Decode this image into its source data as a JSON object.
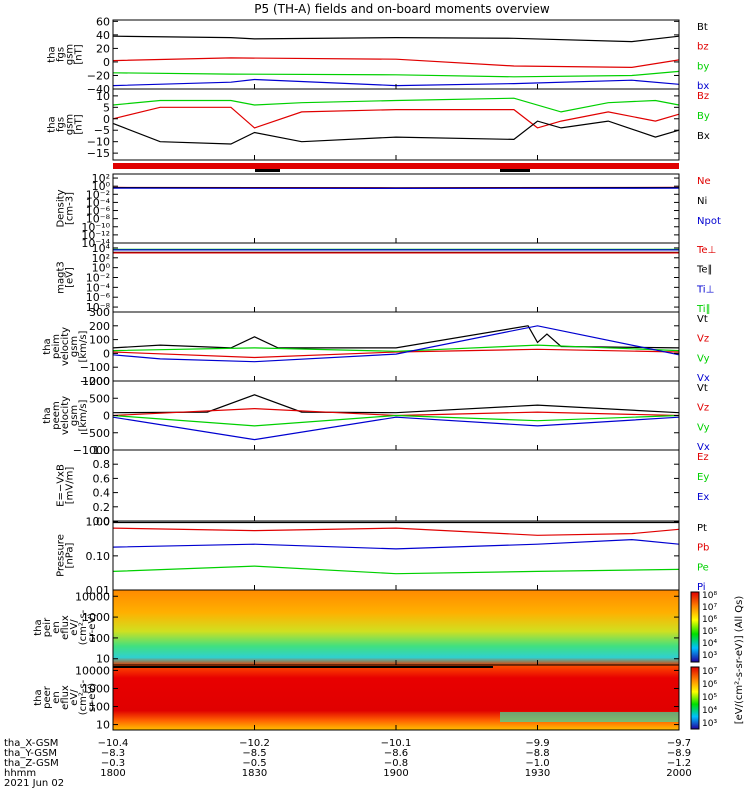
{
  "title": "P5 (TH-A) fields and on-board moments overview",
  "colors": {
    "black": "#000000",
    "red": "#e00000",
    "green": "#00d000",
    "blue": "#0000d0"
  },
  "chart_data": [
    {
      "id": "fgs_gsm",
      "type": "line",
      "ylabel": [
        "tha",
        "fgs",
        "gsm",
        "[nT]"
      ],
      "ylim": [
        -40,
        62
      ],
      "yticks": [
        "60",
        "40",
        "20",
        "0",
        "−20",
        "−40"
      ],
      "ytick_values": [
        60,
        40,
        20,
        0,
        -20,
        -40
      ],
      "legend": [
        {
          "name": "Bt",
          "color": "black"
        },
        {
          "name": "bz",
          "color": "red"
        },
        {
          "name": "by",
          "color": "green"
        },
        {
          "name": "bx",
          "color": "blue"
        }
      ],
      "series": [
        {
          "name": "Bt",
          "color": "black",
          "x": [
            0,
            25,
            30,
            60,
            85,
            110,
            120
          ],
          "y": [
            38,
            36,
            34,
            36,
            35,
            30,
            38
          ]
        },
        {
          "name": "bz",
          "color": "red",
          "x": [
            0,
            25,
            60,
            85,
            110,
            120
          ],
          "y": [
            2,
            6,
            4,
            -6,
            -8,
            3
          ]
        },
        {
          "name": "by",
          "color": "green",
          "x": [
            0,
            25,
            60,
            85,
            110,
            120
          ],
          "y": [
            -16,
            -18,
            -19,
            -22,
            -20,
            -14
          ]
        },
        {
          "name": "bx",
          "color": "blue",
          "x": [
            0,
            25,
            30,
            60,
            85,
            110,
            120
          ],
          "y": [
            -35,
            -30,
            -26,
            -35,
            -32,
            -27,
            -33
          ]
        }
      ]
    },
    {
      "id": "fgs_gsm_zoom",
      "type": "line",
      "ylabel": [
        "tha",
        "fgs",
        "gsm",
        "[nT]"
      ],
      "ylim": [
        -18,
        13
      ],
      "yticks": [
        "10",
        "5",
        "0",
        "−5",
        "−10",
        "−15"
      ],
      "ytick_values": [
        10,
        5,
        0,
        -5,
        -10,
        -15
      ],
      "legend": [
        {
          "name": "Bz",
          "color": "red"
        },
        {
          "name": "By",
          "color": "green"
        },
        {
          "name": "Bx",
          "color": "black"
        }
      ],
      "series": [
        {
          "name": "By",
          "color": "green",
          "x": [
            0,
            10,
            25,
            30,
            40,
            60,
            85,
            95,
            105,
            115,
            120
          ],
          "y": [
            6,
            8,
            8,
            6,
            7,
            8,
            9,
            3,
            7,
            8,
            6
          ]
        },
        {
          "name": "Bz",
          "color": "red",
          "x": [
            0,
            10,
            25,
            30,
            40,
            60,
            85,
            90,
            95,
            105,
            115,
            120
          ],
          "y": [
            0,
            5,
            5,
            -4,
            3,
            4,
            4,
            -4,
            -1,
            3,
            -1,
            2
          ]
        },
        {
          "name": "Bx",
          "color": "black",
          "x": [
            0,
            10,
            25,
            30,
            40,
            60,
            85,
            90,
            95,
            105,
            115,
            120
          ],
          "y": [
            -2,
            -10,
            -11,
            -6,
            -10,
            -8,
            -9,
            -1,
            -4,
            -1,
            -8,
            -5
          ]
        }
      ]
    },
    {
      "id": "density",
      "type": "line",
      "ylabel": [
        "Density",
        "[cm-3]"
      ],
      "ylim": [
        -14,
        3
      ],
      "log": true,
      "yticks": [
        "10²",
        "10⁰",
        "10⁻²",
        "10⁻⁴",
        "10⁻⁶",
        "10⁻⁸",
        "10⁻¹⁰",
        "10⁻¹²",
        "10⁻¹⁴"
      ],
      "ytick_values": [
        2,
        0,
        -2,
        -4,
        -6,
        -8,
        -10,
        -12,
        -14
      ],
      "legend": [
        {
          "name": "Ne",
          "color": "red"
        },
        {
          "name": "Ni",
          "color": "black"
        },
        {
          "name": "Npot",
          "color": "blue"
        }
      ],
      "series": [
        {
          "name": "Ne",
          "color": "red",
          "x": [
            0,
            60,
            120
          ],
          "y": [
            -0.3,
            -0.4,
            -0.3
          ]
        },
        {
          "name": "Ni",
          "color": "black",
          "x": [
            0,
            60,
            120
          ],
          "y": [
            -0.35,
            -0.45,
            -0.35
          ]
        },
        {
          "name": "Npot",
          "color": "blue",
          "x": [
            0,
            60,
            120
          ],
          "y": [
            -0.5,
            -0.55,
            -0.5
          ]
        }
      ]
    },
    {
      "id": "temperature",
      "type": "line",
      "ylabel": [
        "magt3",
        "[eV]"
      ],
      "ylim": [
        -9,
        5
      ],
      "log": true,
      "yticks": [
        "10⁴",
        "10²",
        "10⁰",
        "10⁻²",
        "10⁻⁴",
        "10⁻⁶",
        "10⁻⁸"
      ],
      "ytick_values": [
        4,
        2,
        0,
        -2,
        -4,
        -6,
        -8
      ],
      "legend": [
        {
          "name": "Te⊥",
          "color": "red"
        },
        {
          "name": "Te∥",
          "color": "black"
        },
        {
          "name": "Ti⊥",
          "color": "blue"
        },
        {
          "name": "Ti∥",
          "color": "green"
        }
      ],
      "series": [
        {
          "name": "Ti∥",
          "color": "green",
          "x": [
            0,
            120
          ],
          "y": [
            3.7,
            3.7
          ]
        },
        {
          "name": "Ti⊥",
          "color": "blue",
          "x": [
            0,
            120
          ],
          "y": [
            3.6,
            3.6
          ]
        },
        {
          "name": "Te∥",
          "color": "black",
          "x": [
            0,
            120
          ],
          "y": [
            3.1,
            3.1
          ]
        },
        {
          "name": "Te⊥",
          "color": "red",
          "x": [
            0,
            120
          ],
          "y": [
            3.0,
            3.0
          ]
        }
      ]
    },
    {
      "id": "peim_velocity",
      "type": "line",
      "ylabel": [
        "tha",
        "peim",
        "velocity",
        "gsm",
        "[km/s]"
      ],
      "ylim": [
        -200,
        300
      ],
      "yticks": [
        "300",
        "200",
        "100",
        "0",
        "−100",
        "−200"
      ],
      "ytick_values": [
        300,
        200,
        100,
        0,
        -100,
        -200
      ],
      "legend": [
        {
          "name": "Vt",
          "color": "black"
        },
        {
          "name": "Vz",
          "color": "red"
        },
        {
          "name": "Vy",
          "color": "green"
        },
        {
          "name": "Vx",
          "color": "blue"
        }
      ],
      "series": [
        {
          "name": "Vt",
          "color": "black",
          "x": [
            0,
            10,
            25,
            30,
            35,
            60,
            88,
            90,
            92,
            95,
            120
          ],
          "y": [
            40,
            60,
            40,
            120,
            40,
            40,
            200,
            80,
            140,
            50,
            40
          ]
        },
        {
          "name": "Vz",
          "color": "red",
          "x": [
            0,
            30,
            60,
            90,
            120
          ],
          "y": [
            10,
            -30,
            10,
            30,
            10
          ]
        },
        {
          "name": "Vy",
          "color": "green",
          "x": [
            0,
            30,
            60,
            90,
            120
          ],
          "y": [
            20,
            40,
            15,
            60,
            20
          ]
        },
        {
          "name": "Vx",
          "color": "blue",
          "x": [
            0,
            10,
            30,
            60,
            90,
            120
          ],
          "y": [
            -10,
            -40,
            -60,
            -5,
            200,
            -10
          ]
        }
      ]
    },
    {
      "id": "peem_velocity",
      "type": "line",
      "ylabel": [
        "tha",
        "peem",
        "velocity",
        "gsm",
        "[km/s]"
      ],
      "ylim": [
        -1000,
        1000
      ],
      "yticks": [
        "1000",
        "500",
        "0",
        "−500",
        "−1000"
      ],
      "ytick_values": [
        1000,
        500,
        0,
        -500,
        -1000
      ],
      "legend": [
        {
          "name": "Vt",
          "color": "black"
        },
        {
          "name": "Vz",
          "color": "red"
        },
        {
          "name": "Vy",
          "color": "green"
        },
        {
          "name": "Vx",
          "color": "blue"
        }
      ],
      "series": [
        {
          "name": "Vt",
          "color": "black",
          "x": [
            0,
            20,
            30,
            40,
            60,
            90,
            120
          ],
          "y": [
            80,
            100,
            600,
            100,
            80,
            300,
            80
          ]
        },
        {
          "name": "Vz",
          "color": "red",
          "x": [
            0,
            30,
            60,
            90,
            120
          ],
          "y": [
            0,
            200,
            0,
            100,
            0
          ]
        },
        {
          "name": "Vy",
          "color": "green",
          "x": [
            0,
            30,
            60,
            90,
            120
          ],
          "y": [
            0,
            -300,
            0,
            -150,
            0
          ]
        },
        {
          "name": "Vx",
          "color": "blue",
          "x": [
            0,
            30,
            60,
            90,
            120
          ],
          "y": [
            -50,
            -700,
            -50,
            -300,
            -50
          ]
        }
      ]
    },
    {
      "id": "efield",
      "type": "line",
      "ylabel": [
        "E=−VxB",
        "[mV/m]"
      ],
      "ylim": [
        0,
        1
      ],
      "yticks": [
        "1.0",
        "0.8",
        "0.6",
        "0.4",
        "0.2",
        "0.0"
      ],
      "ytick_values": [
        1,
        0.8,
        0.6,
        0.4,
        0.2,
        0
      ],
      "legend": [
        {
          "name": "Ez",
          "color": "red"
        },
        {
          "name": "Ey",
          "color": "green"
        },
        {
          "name": "Ex",
          "color": "blue"
        }
      ],
      "series": []
    },
    {
      "id": "pressure",
      "type": "line",
      "ylabel": [
        "Pressure",
        "[nPa]"
      ],
      "ylim": [
        0.01,
        1.05
      ],
      "log": true,
      "yticks": [
        "1.00",
        "0.10",
        "0.01"
      ],
      "ytick_values": [
        1,
        0.1,
        0.01
      ],
      "legend": [
        {
          "name": "Pt",
          "color": "black"
        },
        {
          "name": "Pb",
          "color": "red"
        },
        {
          "name": "Pe",
          "color": "green"
        },
        {
          "name": "Pi",
          "color": "blue"
        }
      ],
      "series": [
        {
          "name": "Pt",
          "color": "black",
          "x": [
            0,
            60,
            120
          ],
          "y": [
            0.95,
            0.95,
            0.95
          ]
        },
        {
          "name": "Pb",
          "color": "red",
          "x": [
            0,
            30,
            60,
            90,
            110,
            120
          ],
          "y": [
            0.65,
            0.55,
            0.65,
            0.4,
            0.45,
            0.6
          ]
        },
        {
          "name": "Pi",
          "color": "blue",
          "x": [
            0,
            30,
            60,
            90,
            110,
            120
          ],
          "y": [
            0.18,
            0.22,
            0.16,
            0.22,
            0.3,
            0.22
          ]
        },
        {
          "name": "Pe",
          "color": "green",
          "x": [
            0,
            30,
            60,
            90,
            120
          ],
          "y": [
            0.035,
            0.05,
            0.03,
            0.035,
            0.04
          ]
        }
      ]
    },
    {
      "id": "peir_eflux",
      "type": "heatmap",
      "ylabel": [
        "tha",
        "peir",
        "en",
        "eflux",
        "eV/",
        "(cm²-s-",
        "sr-eV)"
      ],
      "ylim": [
        5,
        20000
      ],
      "log": true,
      "yticks": [
        "10000",
        "1000",
        "100",
        "10"
      ],
      "ytick_values": [
        10000,
        1000,
        100,
        10
      ],
      "color_range": [
        "10⁴",
        "10⁸"
      ]
    },
    {
      "id": "peer_eflux",
      "type": "heatmap",
      "ylabel": [
        "tha",
        "peer",
        "en",
        "eflux",
        "eV/",
        "(cm²-s-",
        "sr-eV)"
      ],
      "ylim": [
        5,
        20000
      ],
      "log": true,
      "yticks": [
        "10000",
        "1000",
        "100",
        "10"
      ],
      "ytick_values": [
        10000,
        1000,
        100,
        10
      ],
      "color_range": [
        "10³",
        "10⁷"
      ]
    }
  ],
  "colorbar": {
    "label": "[eV/(cm²-s-sr-eV)] (All Qs)",
    "ticks_top": [
      "10⁸",
      "10⁷",
      "10⁶",
      "10⁵",
      "10⁴",
      "10³"
    ],
    "ticks_bottom": [
      "10⁷",
      "10⁶",
      "10⁵",
      "10⁴",
      "10³"
    ]
  },
  "x_axis": {
    "tick_values": [
      0,
      30,
      60,
      90,
      120
    ],
    "rows": [
      {
        "label": "tha_X-GSM",
        "values": [
          "−10.4",
          "−10.2",
          "−10.1",
          "−9.9",
          "−9.7"
        ]
      },
      {
        "label": "tha_Y-GSM",
        "values": [
          "−8.3",
          "−8.5",
          "−8.6",
          "−8.8",
          "−8.9"
        ]
      },
      {
        "label": "tha_Z-GSM",
        "values": [
          "−0.3",
          "−0.5",
          "−0.8",
          "−1.0",
          "−1.2"
        ]
      },
      {
        "label": "hhmm",
        "values": [
          "1800",
          "1830",
          "1900",
          "1930",
          "2000"
        ]
      }
    ],
    "date": "2021 Jun 02"
  }
}
